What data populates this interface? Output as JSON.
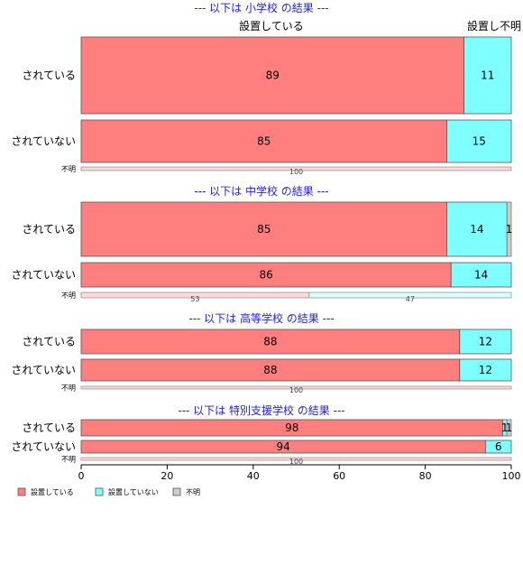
{
  "chart_data": {
    "type": "bar",
    "orientation": "horizontal",
    "stacked": true,
    "xlim": [
      0,
      100
    ],
    "x_ticks": [
      "0",
      "20",
      "40",
      "60",
      "80",
      "100"
    ],
    "column_headers": [
      "設置している",
      "設置し不明"
    ],
    "colors": {
      "設置している": "#ff7f7f",
      "設置していない": "#7fffff",
      "不明": "#cccccc"
    },
    "legend": {
      "placement": "bottom-left",
      "entries": [
        "設置している",
        "設置していない",
        "不明"
      ]
    },
    "panels": [
      {
        "title": "--- 以下は 小学校 の結果 ---",
        "rows": [
          {
            "label": "されている",
            "values": [
              89,
              11,
              0
            ],
            "labels": [
              "89",
              "11",
              ""
            ]
          },
          {
            "label": "されていない",
            "values": [
              85,
              15,
              0
            ],
            "labels": [
              "85",
              "15",
              ""
            ]
          },
          {
            "label": "不明",
            "values": [
              100,
              0,
              0
            ],
            "labels": [
              "100",
              "",
              ""
            ],
            "small": true
          }
        ]
      },
      {
        "title": "--- 以下は 中学校 の結果 ---",
        "rows": [
          {
            "label": "されている",
            "values": [
              85,
              14,
              1
            ],
            "labels": [
              "85",
              "14",
              "1"
            ]
          },
          {
            "label": "されていない",
            "values": [
              86,
              14,
              0
            ],
            "labels": [
              "86",
              "14",
              ""
            ]
          },
          {
            "label": "不明",
            "values": [
              53,
              47,
              0
            ],
            "labels": [
              "53",
              "47",
              ""
            ],
            "small": true
          }
        ]
      },
      {
        "title": "--- 以下は 高等学校 の結果 ---",
        "rows": [
          {
            "label": "されている",
            "values": [
              88,
              12,
              0
            ],
            "labels": [
              "88",
              "12",
              ""
            ]
          },
          {
            "label": "されていない",
            "values": [
              88,
              12,
              0
            ],
            "labels": [
              "88",
              "12",
              ""
            ]
          },
          {
            "label": "不明",
            "values": [
              100,
              0,
              0
            ],
            "labels": [
              "100",
              "",
              ""
            ],
            "small": true
          }
        ]
      },
      {
        "title": "--- 以下は 特別支援学校 の結果 ---",
        "rows": [
          {
            "label": "されている",
            "values": [
              98,
              1,
              1
            ],
            "labels": [
              "98",
              "1",
              "1"
            ]
          },
          {
            "label": "されていない",
            "values": [
              94,
              6,
              0
            ],
            "labels": [
              "94",
              "6",
              ""
            ]
          },
          {
            "label": "不明",
            "values": [
              100,
              0,
              0
            ],
            "labels": [
              "100",
              "",
              ""
            ],
            "small": true
          }
        ]
      }
    ]
  }
}
